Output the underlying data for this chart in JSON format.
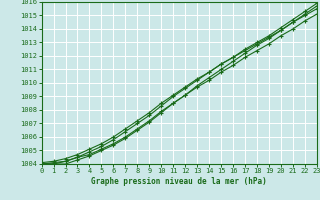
{
  "title": "Graphe pression niveau de la mer (hPa)",
  "bg_color": "#cce8e8",
  "line_color": "#1a6b1a",
  "grid_color": "#ffffff",
  "ylim": [
    1004,
    1016
  ],
  "xlim": [
    0,
    23
  ],
  "yticks": [
    1004,
    1005,
    1006,
    1007,
    1008,
    1009,
    1010,
    1011,
    1012,
    1013,
    1014,
    1015,
    1016
  ],
  "xticks": [
    0,
    1,
    2,
    3,
    4,
    5,
    6,
    7,
    8,
    9,
    10,
    11,
    12,
    13,
    14,
    15,
    16,
    17,
    18,
    19,
    20,
    21,
    22,
    23
  ],
  "lines": [
    [
      1004.0,
      1004.1,
      1004.2,
      1004.5,
      1004.7,
      1005.1,
      1005.5,
      1006.0,
      1006.6,
      1007.2,
      1007.9,
      1008.5,
      1009.1,
      1009.7,
      1010.2,
      1010.8,
      1011.3,
      1011.9,
      1012.4,
      1012.9,
      1013.5,
      1014.0,
      1014.6,
      1015.1
    ],
    [
      1004.0,
      1004.0,
      1004.0,
      1004.3,
      1004.6,
      1005.0,
      1005.4,
      1005.9,
      1006.5,
      1007.1,
      1007.8,
      1008.5,
      1009.1,
      1009.8,
      1010.4,
      1011.0,
      1011.6,
      1012.2,
      1012.8,
      1013.3,
      1013.9,
      1014.5,
      1015.1,
      1015.7
    ],
    [
      1004.1,
      1004.2,
      1004.4,
      1004.7,
      1005.1,
      1005.5,
      1006.0,
      1006.6,
      1007.2,
      1007.8,
      1008.5,
      1009.1,
      1009.7,
      1010.3,
      1010.8,
      1011.4,
      1011.9,
      1012.4,
      1012.9,
      1013.4,
      1013.9,
      1014.5,
      1015.0,
      1015.5
    ],
    [
      1004.0,
      1004.0,
      1004.2,
      1004.5,
      1004.9,
      1005.3,
      1005.8,
      1006.4,
      1007.0,
      1007.6,
      1008.3,
      1009.0,
      1009.6,
      1010.2,
      1010.8,
      1011.4,
      1011.9,
      1012.5,
      1013.0,
      1013.5,
      1014.1,
      1014.7,
      1015.3,
      1015.9
    ]
  ]
}
